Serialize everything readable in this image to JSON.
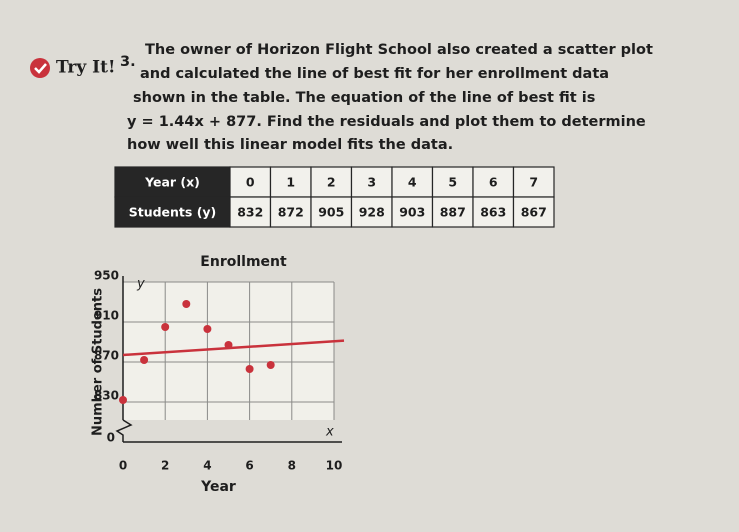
{
  "badge": "Try It!",
  "problem": {
    "number": "3.",
    "lines": [
      "The owner of Horizon Flight School also created a scatter plot",
      "and calculated the line of best fit for her enrollment data",
      "shown in the table. The equation of the line of best fit is",
      "y = 1.44x + 877. Find the residuals and plot them to determine",
      "how well this linear model fits the data."
    ]
  },
  "table": {
    "rows": [
      [
        "Year (x)",
        "0",
        "1",
        "2",
        "3",
        "4",
        "5",
        "6",
        "7"
      ],
      [
        "Students (y)",
        "832",
        "872",
        "905",
        "928",
        "903",
        "887",
        "863",
        "867"
      ]
    ]
  },
  "chart_data": {
    "type": "scatter",
    "title": "Enrollment",
    "x_label": "Year",
    "y_label": "Number of Students",
    "x_axis_letter": "x",
    "y_axis_letter": "y",
    "origin_label": "0",
    "x": [
      0,
      1,
      2,
      3,
      4,
      5,
      6,
      7
    ],
    "series": [
      {
        "name": "Students",
        "color": "#c9323c",
        "values": [
          832,
          872,
          905,
          928,
          903,
          887,
          863,
          867
        ]
      }
    ],
    "fit_line": {
      "slope": 1.44,
      "intercept": 877,
      "color": "#c9323c"
    },
    "xlim": [
      0,
      10
    ],
    "xticks": [
      0,
      2,
      4,
      6,
      8,
      10
    ],
    "ylim": [
      812,
      950
    ],
    "yticks": [
      830,
      870,
      910,
      950
    ],
    "grid": true
  }
}
